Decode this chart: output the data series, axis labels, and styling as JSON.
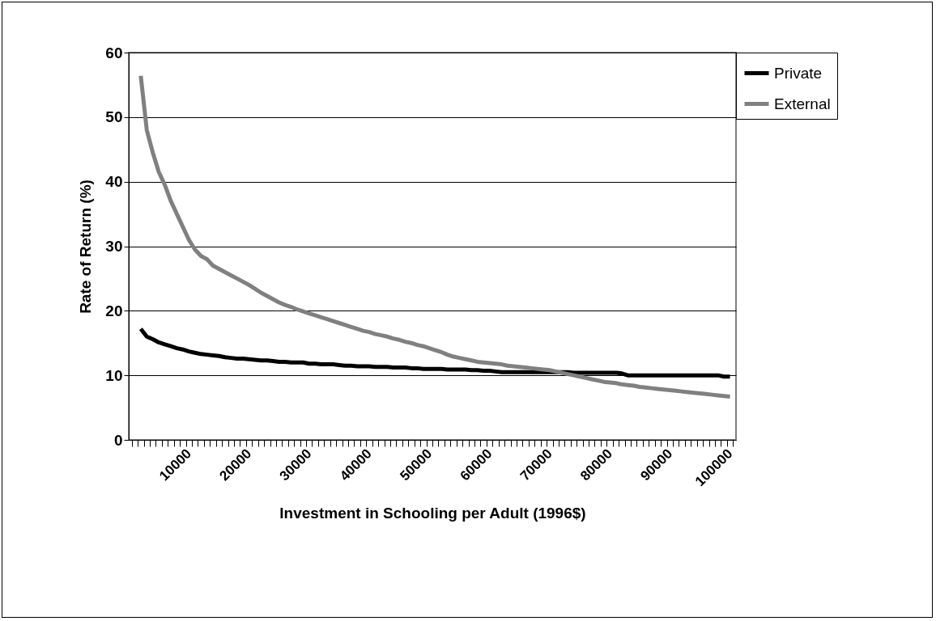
{
  "chart_data": {
    "type": "line",
    "xlabel": "Investment in Schooling per Adult (1996$)",
    "ylabel": "Rate of Return (%)",
    "categories": [
      null,
      null,
      null,
      null,
      null,
      null,
      null,
      null,
      null,
      "10000",
      null,
      null,
      null,
      null,
      null,
      null,
      null,
      null,
      null,
      "20000",
      null,
      null,
      null,
      null,
      null,
      null,
      null,
      null,
      null,
      "30000",
      null,
      null,
      null,
      null,
      null,
      null,
      null,
      null,
      null,
      "40000",
      null,
      null,
      null,
      null,
      null,
      null,
      null,
      null,
      null,
      "50000",
      null,
      null,
      null,
      null,
      null,
      null,
      null,
      null,
      null,
      "60000",
      null,
      null,
      null,
      null,
      null,
      null,
      null,
      null,
      null,
      "70000",
      null,
      null,
      null,
      null,
      null,
      null,
      null,
      null,
      null,
      "80000",
      null,
      null,
      null,
      null,
      null,
      null,
      null,
      null,
      null,
      "90000",
      null,
      null,
      null,
      null,
      null,
      null,
      null,
      null,
      null,
      "100000"
    ],
    "series": [
      {
        "name": "Private",
        "color": "#000000",
        "values": [
          null,
          17.2,
          16,
          15.6,
          15.1,
          14.8,
          14.5,
          14.2,
          14,
          13.7,
          13.5,
          13.3,
          13.2,
          13.1,
          13,
          12.8,
          12.7,
          12.6,
          12.6,
          12.5,
          12.4,
          12.3,
          12.3,
          12.2,
          12.1,
          12.1,
          12,
          12,
          12,
          11.8,
          11.8,
          11.7,
          11.7,
          11.7,
          11.6,
          11.5,
          11.5,
          11.4,
          11.4,
          11.4,
          11.3,
          11.3,
          11.3,
          11.2,
          11.2,
          11.2,
          11.1,
          11.1,
          11,
          11,
          11,
          11,
          10.9,
          10.9,
          10.9,
          10.9,
          10.8,
          10.8,
          10.7,
          10.7,
          10.6,
          10.5,
          10.5,
          10.5,
          10.5,
          10.5,
          10.5,
          10.5,
          10.5,
          10.5,
          10.5,
          10.5,
          10.5,
          10.4,
          10.4,
          10.4,
          10.4,
          10.4,
          10.4,
          10.4,
          10.4,
          10.3,
          10,
          10,
          10,
          10,
          10,
          10,
          10,
          10,
          10,
          10,
          10,
          10,
          10,
          10,
          10,
          10,
          9.8,
          9.8
        ]
      },
      {
        "name": "External",
        "color": "#808080",
        "values": [
          null,
          56.4,
          48,
          44.5,
          41.5,
          39.5,
          37,
          35,
          33,
          31,
          29.5,
          28.5,
          28,
          27,
          26.5,
          26,
          25.5,
          25,
          24.5,
          24,
          23.4,
          22.8,
          22.3,
          21.8,
          21.3,
          20.9,
          20.6,
          20.2,
          19.9,
          19.6,
          19.3,
          19,
          18.7,
          18.4,
          18.1,
          17.8,
          17.5,
          17.2,
          16.9,
          16.7,
          16.4,
          16.2,
          16,
          15.7,
          15.5,
          15.2,
          15,
          14.7,
          14.5,
          14.2,
          13.9,
          13.6,
          13.2,
          12.9,
          12.7,
          12.5,
          12.3,
          12.1,
          12,
          11.9,
          11.8,
          11.7,
          11.5,
          11.4,
          11.3,
          11.2,
          11.1,
          11,
          10.9,
          10.8,
          10.6,
          10.4,
          10.2,
          10,
          9.8,
          9.6,
          9.4,
          9.2,
          9,
          8.9,
          8.8,
          8.6,
          8.5,
          8.4,
          8.2,
          8.1,
          8,
          7.9,
          7.8,
          7.7,
          7.6,
          7.5,
          7.4,
          7.3,
          7.2,
          7.1,
          7,
          6.9,
          6.8,
          6.7
        ]
      }
    ],
    "ylim": [
      0,
      60
    ],
    "yticks": [
      0,
      10,
      20,
      30,
      40,
      50,
      60
    ],
    "grid": "y",
    "legend": "right",
    "marker": "none",
    "line_style": "solid"
  }
}
